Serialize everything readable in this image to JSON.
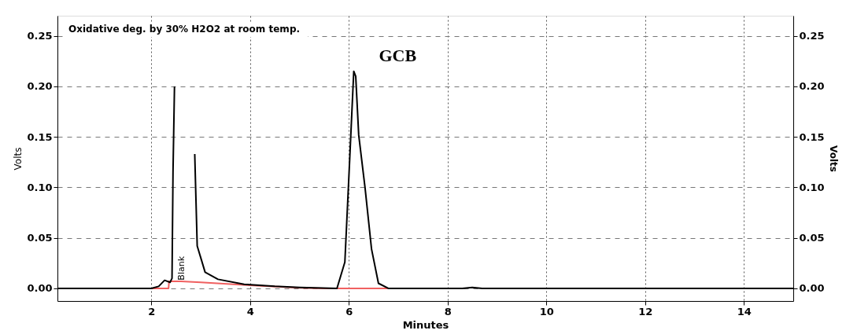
{
  "chart_data": {
    "type": "line",
    "title": "Oxidative deg. by 30% H2O2 at room temp.",
    "xlabel": "Minutes",
    "ylabel": "Volts",
    "y2label": "Volts",
    "xlim": [
      0.1,
      15
    ],
    "xticks": [
      2,
      4,
      6,
      8,
      10,
      12,
      14
    ],
    "ylim": [
      -0.0125,
      0.27
    ],
    "yticks": [
      {
        "value": 0,
        "label": "0.00"
      },
      0.05,
      {
        "value": 0.1,
        "label": "0.10"
      },
      0.15,
      {
        "value": 0.2,
        "label": "0.20"
      },
      0.25
    ],
    "y2lim": [
      -0.0125,
      0.27
    ],
    "y2ticks": [
      {
        "value": 0,
        "label": "0.00"
      },
      0.05,
      {
        "value": 0.1,
        "label": "0.10"
      },
      0.15,
      {
        "value": 0.2,
        "label": "0.20"
      },
      0.25
    ],
    "grid": true,
    "marker": "none",
    "line_style": "solid",
    "series": [
      {
        "color": "#f06060",
        "x": [
          0.1,
          2.35,
          2.36,
          2.6,
          3.0,
          4.0,
          5.0,
          5.5,
          7.2
        ],
        "values": [
          0,
          0,
          0.007,
          0.007,
          0.006,
          0.003,
          0.0005,
          0,
          0
        ]
      },
      {
        "color": "#000000",
        "x": [
          0.1,
          2.0,
          2.15,
          2.27,
          2.38,
          2.42,
          2.44,
          2.47,
          2.5,
          2.86,
          2.88,
          2.93,
          3.09,
          3.35,
          3.88,
          4.5,
          5.0,
          5.76,
          5.92,
          6.02,
          6.1,
          6.14,
          6.2,
          6.33,
          6.46,
          6.6,
          6.8,
          8.3,
          8.5,
          8.7,
          15
        ],
        "values": [
          0,
          0,
          0.002,
          0.008,
          0.006,
          0.01,
          0.115,
          0.2,
          null,
          null,
          0.133,
          0.042,
          0.016,
          0.009,
          0.004,
          0.002,
          0.001,
          0,
          0.026,
          0.13,
          0.215,
          0.21,
          0.152,
          0.099,
          0.039,
          0.005,
          0,
          0,
          0.001,
          0,
          0
        ]
      }
    ],
    "annotations": [
      {
        "text": "GCB",
        "x": 6.1,
        "y": 0.215
      },
      {
        "text": "Blank",
        "x": 2.62,
        "y": 0.008
      }
    ]
  }
}
